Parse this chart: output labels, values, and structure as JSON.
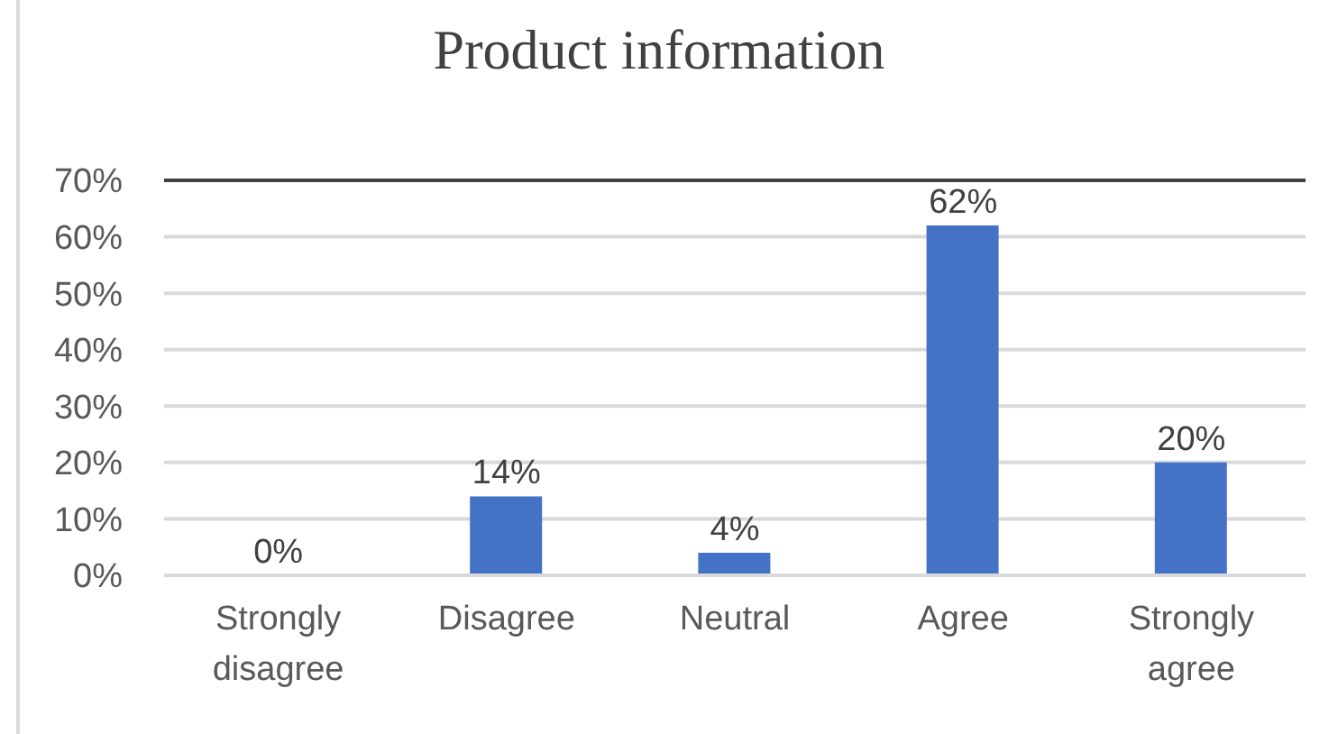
{
  "chart_data": {
    "type": "bar",
    "title": "Product information",
    "categories": [
      "Strongly disagree",
      "Disagree",
      "Neutral",
      "Agree",
      "Strongly agree"
    ],
    "values": [
      0,
      14,
      4,
      62,
      20
    ],
    "color": "#4472c4",
    "value_labels": [
      "0%",
      "14%",
      "4%",
      "62%",
      "20%"
    ],
    "ylim": [
      0,
      70
    ],
    "yticks": [
      {
        "value": 0,
        "label": "0%"
      },
      {
        "value": 10,
        "label": "10%"
      },
      {
        "value": 20,
        "label": "20%"
      },
      {
        "value": 30,
        "label": "30%"
      },
      {
        "value": 40,
        "label": "40%"
      },
      {
        "value": 50,
        "label": "50%"
      },
      {
        "value": 60,
        "label": "60%"
      },
      {
        "value": 70,
        "label": "70%"
      }
    ],
    "grid": "y",
    "ref_lines": [
      {
        "axis": "y",
        "value": 70,
        "color": "#404040"
      }
    ]
  }
}
